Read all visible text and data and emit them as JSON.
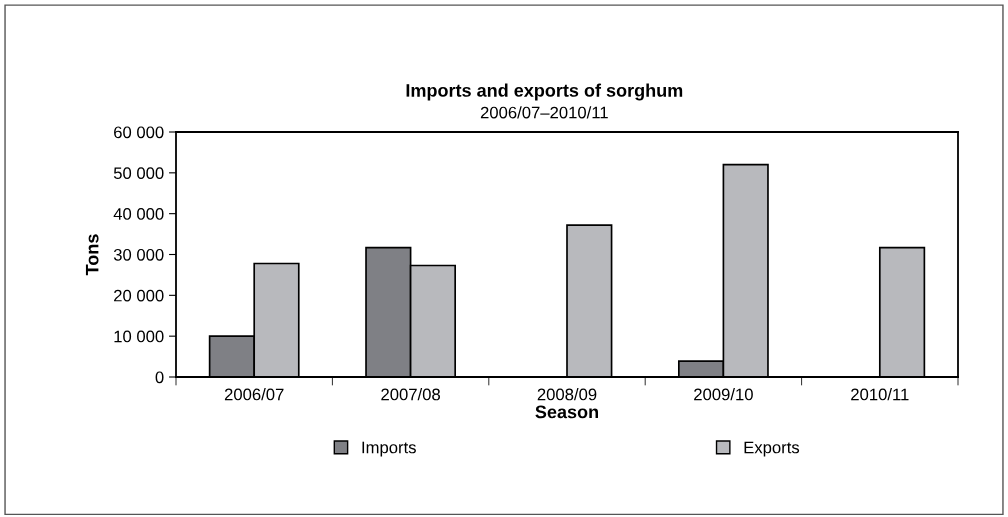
{
  "chart_data": {
    "type": "bar",
    "title": "Imports and exports of sorghum",
    "subtitle": "2006/07–2010/11",
    "xlabel": "Season",
    "ylabel": "Tons",
    "categories": [
      "2006/07",
      "2007/08",
      "2008/09",
      "2009/10",
      "2010/11"
    ],
    "series": [
      {
        "name": "Imports",
        "color": "#7f8085",
        "values": [
          10000,
          31700,
          null,
          3900,
          null
        ]
      },
      {
        "name": "Exports",
        "color": "#b8b9bd",
        "values": [
          27800,
          27300,
          37200,
          52000,
          31700
        ]
      }
    ],
    "ylim": [
      0,
      60000
    ],
    "yticks": [
      {
        "value": 0,
        "label": "0"
      },
      {
        "value": 10000,
        "label": "10 000"
      },
      {
        "value": 20000,
        "label": "20 000"
      },
      {
        "value": 30000,
        "label": "30 000"
      },
      {
        "value": 40000,
        "label": "40 000"
      },
      {
        "value": 50000,
        "label": "50 000"
      },
      {
        "value": 60000,
        "label": "60 000"
      }
    ],
    "grid": false,
    "legend": "bottom"
  }
}
